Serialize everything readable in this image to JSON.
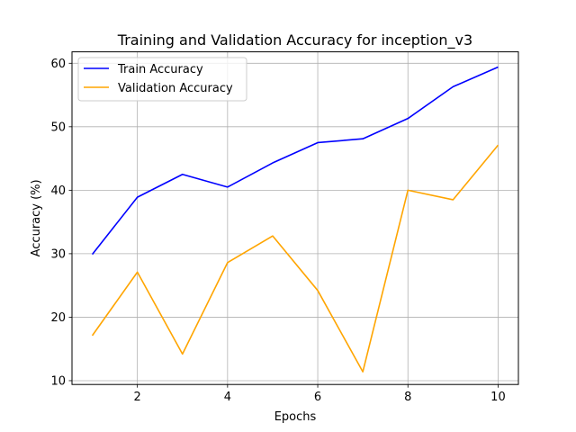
{
  "chart_data": {
    "type": "line",
    "title": "Training and Validation Accuracy for inception_v3",
    "xlabel": "Epochs",
    "ylabel": "Accuracy (%)",
    "x": [
      1,
      2,
      3,
      4,
      5,
      6,
      7,
      8,
      9,
      10
    ],
    "xlim": [
      0.55,
      10.45
    ],
    "ylim": [
      9.4,
      61.8
    ],
    "xticks": [
      2,
      4,
      6,
      8,
      10
    ],
    "yticks": [
      10,
      20,
      30,
      40,
      50,
      60
    ],
    "grid": true,
    "legend_position": "top-left",
    "series": [
      {
        "name": "Train Accuracy",
        "color": "#0000ff",
        "values": [
          29.9,
          38.9,
          42.5,
          40.5,
          44.3,
          47.5,
          48.1,
          51.3,
          56.3,
          59.4
        ]
      },
      {
        "name": "Validation Accuracy",
        "color": "#ffa500",
        "values": [
          17.1,
          27.1,
          14.2,
          28.6,
          32.8,
          24.2,
          11.4,
          40.0,
          38.5,
          47.1
        ]
      }
    ]
  }
}
